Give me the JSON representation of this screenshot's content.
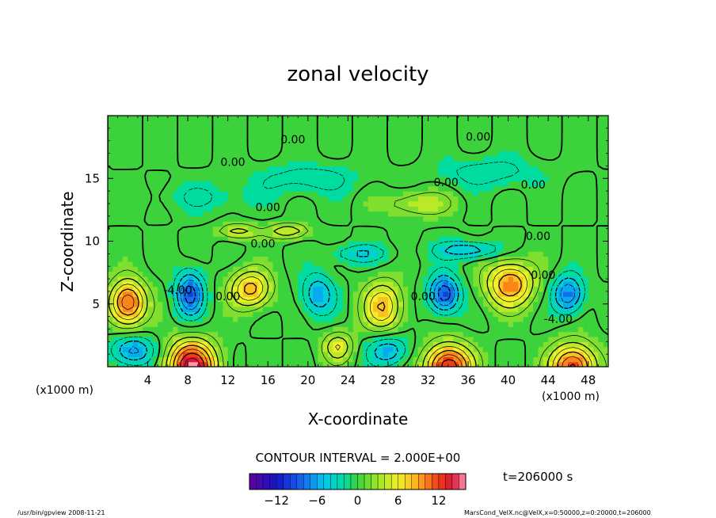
{
  "chart_data": {
    "type": "heatmap",
    "title": "zonal velocity",
    "xlabel": "X-coordinate",
    "ylabel": "Z-coordinate",
    "x_unit": "(x1000 m)",
    "x_unit_right": "(x1000 m)",
    "xlim": [
      0,
      50
    ],
    "ylim": [
      0,
      20
    ],
    "x_ticks": [
      4,
      8,
      12,
      16,
      20,
      24,
      28,
      32,
      36,
      40,
      44,
      48
    ],
    "y_ticks": [
      5,
      10,
      15
    ],
    "contour_interval_text": "CONTOUR INTERVAL = 2.000E+00",
    "time_text": "t=206000 s",
    "colorbar": {
      "min": -16,
      "max": 16,
      "ticks": [
        -12,
        -6,
        0,
        6,
        12
      ]
    },
    "contour_labels": [
      {
        "text": "0.00",
        "x": 18.5,
        "y": 17.8
      },
      {
        "text": "0.00",
        "x": 12.5,
        "y": 16.0
      },
      {
        "text": "0.00",
        "x": 37.0,
        "y": 18.0
      },
      {
        "text": "0.00",
        "x": 33.8,
        "y": 14.4
      },
      {
        "text": "0.00",
        "x": 42.5,
        "y": 14.2
      },
      {
        "text": "0.00",
        "x": 16.0,
        "y": 12.4
      },
      {
        "text": "0.00",
        "x": 15.5,
        "y": 9.5
      },
      {
        "text": "0.00",
        "x": 43.0,
        "y": 10.1
      },
      {
        "text": "-4.00",
        "x": 7.0,
        "y": 5.8
      },
      {
        "text": "0.00",
        "x": 12.0,
        "y": 5.3
      },
      {
        "text": "0.00",
        "x": 31.5,
        "y": 5.3
      },
      {
        "text": "0.00",
        "x": 43.5,
        "y": 7.0
      },
      {
        "text": "-4.00",
        "x": 45.0,
        "y": 3.5
      }
    ],
    "features": [
      {
        "x": 2.0,
        "z": 5.1,
        "value": 12,
        "sx": 1.8,
        "sz": 1.8
      },
      {
        "x": 8.4,
        "z": 0.0,
        "value": 15,
        "sx": 2.4,
        "sz": 2.1
      },
      {
        "x": 14.3,
        "z": 6.2,
        "value": 9,
        "sx": 2.0,
        "sz": 1.5
      },
      {
        "x": 27.5,
        "z": 4.8,
        "value": 8,
        "sx": 2.0,
        "sz": 2.0
      },
      {
        "x": 34.0,
        "z": 0.0,
        "value": 14,
        "sx": 2.3,
        "sz": 1.8
      },
      {
        "x": 40.2,
        "z": 6.6,
        "value": 10,
        "sx": 2.4,
        "sz": 1.8
      },
      {
        "x": 46.5,
        "z": 0.0,
        "value": 13,
        "sx": 2.2,
        "sz": 1.8
      },
      {
        "x": 23.0,
        "z": 1.6,
        "value": 6,
        "sx": 1.5,
        "sz": 1.2
      },
      {
        "x": 13.0,
        "z": 10.8,
        "value": 5,
        "sx": 2.0,
        "sz": 0.6
      },
      {
        "x": 18.0,
        "z": 10.8,
        "value": 6,
        "sx": 2.0,
        "sz": 0.6
      },
      {
        "x": 31.0,
        "z": 13.0,
        "value": 4,
        "sx": 3.5,
        "sz": 1.0
      },
      {
        "x": 8.2,
        "z": 5.8,
        "value": -9,
        "sx": 1.4,
        "sz": 1.8
      },
      {
        "x": 33.6,
        "z": 5.8,
        "value": -10,
        "sx": 1.5,
        "sz": 1.5
      },
      {
        "x": 46.0,
        "z": 5.8,
        "value": -8,
        "sx": 1.5,
        "sz": 1.5
      },
      {
        "x": 2.5,
        "z": 1.3,
        "value": -7,
        "sx": 2.0,
        "sz": 1.2
      },
      {
        "x": 28.0,
        "z": 1.3,
        "value": -6,
        "sx": 2.0,
        "sz": 1.2
      },
      {
        "x": 21.0,
        "z": 5.8,
        "value": -6,
        "sx": 1.6,
        "sz": 1.6
      },
      {
        "x": 36.0,
        "z": 9.3,
        "value": -6,
        "sx": 3.0,
        "sz": 0.7
      },
      {
        "x": 25.0,
        "z": 9.0,
        "value": -4,
        "sx": 3.0,
        "sz": 0.7
      },
      {
        "x": 20.0,
        "z": 15.0,
        "value": -3,
        "sx": 5.0,
        "sz": 1.2
      },
      {
        "x": 38.0,
        "z": 15.5,
        "value": -3,
        "sx": 5.0,
        "sz": 1.2
      },
      {
        "x": 10.0,
        "z": 13.5,
        "value": -2,
        "sx": 5.0,
        "sz": 1.2
      }
    ]
  },
  "footer": {
    "left": "/usr/bin/gpview   2008-11-21",
    "right": "MarsCond_VelX.nc@VelX,x=0:50000,z=0:20000,t=206000"
  },
  "colors": {
    "frame": "#000000",
    "background": "#ffffff"
  }
}
